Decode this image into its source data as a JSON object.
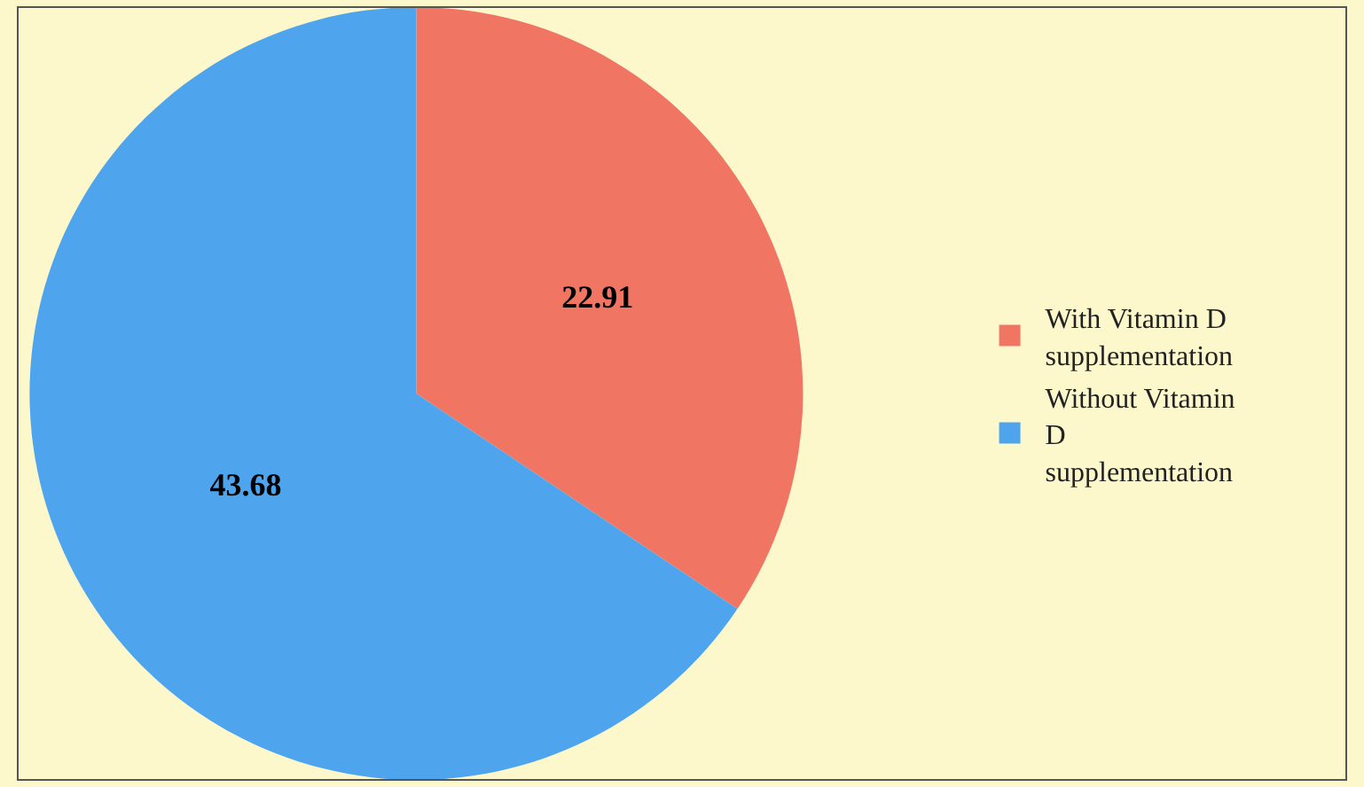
{
  "chart_data": {
    "type": "pie",
    "categories": [
      "With Vitamin D supplementation",
      "Without Vitamin D supplementation"
    ],
    "values": [
      22.91,
      43.68
    ],
    "colors": [
      "#f07563",
      "#4ea5ee"
    ],
    "data_labels": true,
    "legend": "right"
  }
}
